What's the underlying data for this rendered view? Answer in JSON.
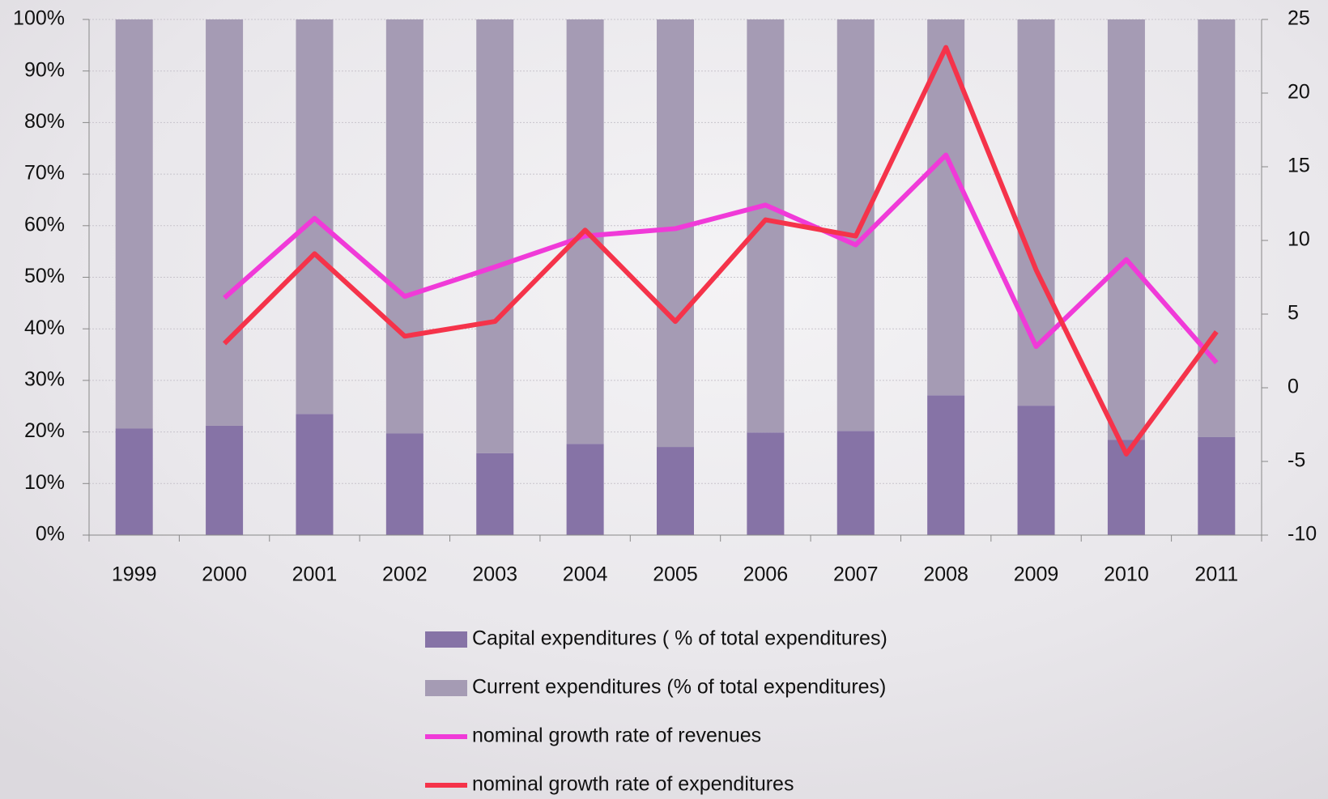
{
  "chart_data": {
    "type": "bar",
    "categories": [
      "1999",
      "2000",
      "2001",
      "2002",
      "2003",
      "2004",
      "2005",
      "2006",
      "2007",
      "2008",
      "2009",
      "2010",
      "2011"
    ],
    "series": [
      {
        "name": "Capital expenditures ( % of total expenditures)",
        "color": "#8673a6",
        "stacked": true,
        "values": [
          20.7,
          21.2,
          23.5,
          19.7,
          15.9,
          17.7,
          17.1,
          19.9,
          20.2,
          27.1,
          25.1,
          18.5,
          19.0
        ]
      },
      {
        "name": "Current expenditures  (% of total expenditures)",
        "color": "#a59bb4",
        "stacked": true,
        "values": [
          79.3,
          78.8,
          76.5,
          80.3,
          84.1,
          82.3,
          82.9,
          80.1,
          79.8,
          72.9,
          74.9,
          81.5,
          81.0
        ]
      },
      {
        "name": "nominal growth rate of revenues",
        "color": "#f03ad8",
        "type": "line",
        "axis": "y2",
        "values": [
          null,
          6.1,
          11.5,
          6.2,
          8.2,
          10.3,
          10.8,
          12.4,
          9.7,
          15.8,
          2.8,
          8.7,
          1.7
        ]
      },
      {
        "name": "nominal growth rate of expenditures",
        "color": "#f5334a",
        "type": "line",
        "axis": "y2",
        "values": [
          null,
          3.0,
          9.1,
          3.5,
          4.5,
          10.7,
          4.5,
          11.4,
          10.3,
          23.1,
          8.0,
          -4.5,
          3.8
        ]
      }
    ],
    "ylim": [
      0,
      100
    ],
    "yticks": [
      {
        "value": 0,
        "label": "0%"
      },
      {
        "value": 10,
        "label": "10%"
      },
      {
        "value": 20,
        "label": "20%"
      },
      {
        "value": 30,
        "label": "30%"
      },
      {
        "value": 40,
        "label": "40%"
      },
      {
        "value": 50,
        "label": "50%"
      },
      {
        "value": 60,
        "label": "60%"
      },
      {
        "value": 70,
        "label": "70%"
      },
      {
        "value": 80,
        "label": "80%"
      },
      {
        "value": 90,
        "label": "90%"
      },
      {
        "value": 100,
        "label": "100%"
      }
    ],
    "y2lim": [
      -10,
      25
    ],
    "y2ticks": [
      -10,
      -5,
      0,
      5,
      10,
      15,
      20,
      25
    ],
    "grid": true,
    "legend": "bottom"
  }
}
